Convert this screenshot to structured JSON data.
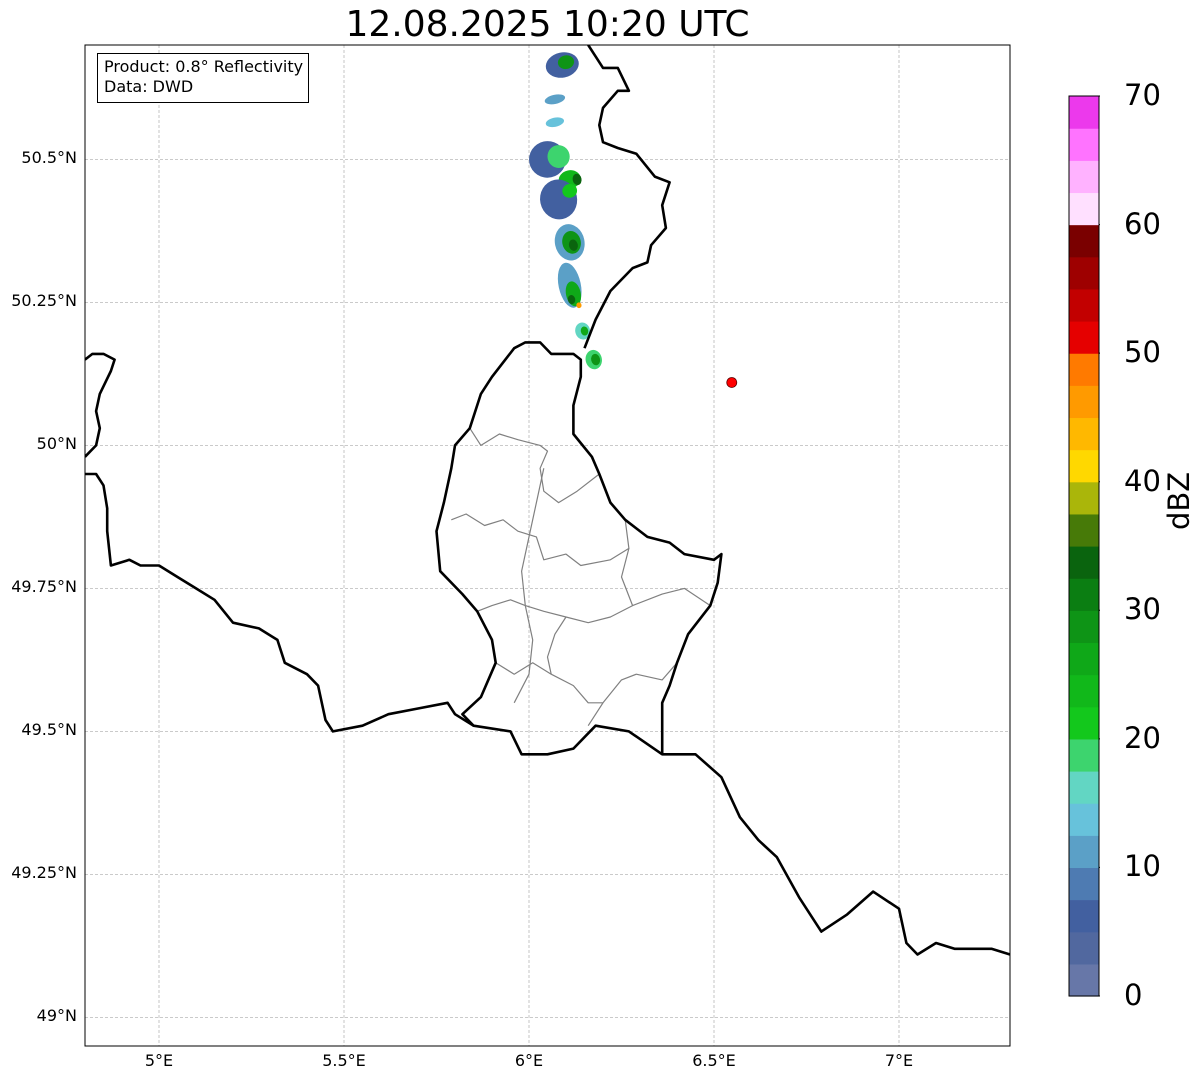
{
  "title": "12.08.2025 10:20 UTC",
  "info": {
    "product": "Product: 0.8° Reflectivity",
    "data": "Data: DWD"
  },
  "map": {
    "extent": {
      "lon_min": 4.8,
      "lon_max": 7.3,
      "lat_min": 48.95,
      "lat_max": 50.7
    },
    "lat_ticks": [
      {
        "value": 50.5,
        "label": "50.5°N"
      },
      {
        "value": 50.25,
        "label": "50.25°N"
      },
      {
        "value": 50.0,
        "label": "50°N"
      },
      {
        "value": 49.75,
        "label": "49.75°N"
      },
      {
        "value": 49.5,
        "label": "49.5°N"
      },
      {
        "value": 49.25,
        "label": "49.25°N"
      },
      {
        "value": 49.0,
        "label": "49°N"
      }
    ],
    "lon_ticks": [
      {
        "value": 5.0,
        "label": "5°E"
      },
      {
        "value": 5.5,
        "label": "5.5°E"
      },
      {
        "value": 6.0,
        "label": "6°E"
      },
      {
        "value": 6.5,
        "label": "6.5°E"
      },
      {
        "value": 7.0,
        "label": "7°E"
      }
    ],
    "grid": true,
    "radar_site": {
      "lon": 6.548,
      "lat": 50.11,
      "color": "#ff0000"
    },
    "border_color": "#000000",
    "district_color": "#808080",
    "borders": [
      [
        [
          4.8,
          50.15
        ],
        [
          4.82,
          50.16
        ],
        [
          4.85,
          50.16
        ],
        [
          4.88,
          50.15
        ],
        [
          4.87,
          50.13
        ],
        [
          4.84,
          50.09
        ],
        [
          4.83,
          50.06
        ],
        [
          4.84,
          50.03
        ],
        [
          4.83,
          50.0
        ],
        [
          4.8,
          49.98
        ]
      ],
      [
        [
          4.8,
          49.95
        ],
        [
          4.83,
          49.95
        ],
        [
          4.85,
          49.93
        ],
        [
          4.86,
          49.89
        ],
        [
          4.86,
          49.85
        ],
        [
          4.87,
          49.79
        ],
        [
          4.92,
          49.8
        ],
        [
          4.95,
          49.79
        ],
        [
          5.0,
          49.79
        ],
        [
          5.05,
          49.77
        ],
        [
          5.1,
          49.75
        ],
        [
          5.15,
          49.73
        ],
        [
          5.2,
          49.69
        ],
        [
          5.27,
          49.68
        ],
        [
          5.32,
          49.66
        ],
        [
          5.34,
          49.62
        ],
        [
          5.4,
          49.6
        ],
        [
          5.43,
          49.58
        ],
        [
          5.45,
          49.52
        ],
        [
          5.47,
          49.5
        ],
        [
          5.55,
          49.51
        ],
        [
          5.62,
          49.53
        ],
        [
          5.7,
          49.54
        ],
        [
          5.78,
          49.55
        ],
        [
          5.8,
          49.53
        ],
        [
          5.85,
          49.51
        ],
        [
          5.95,
          49.5
        ],
        [
          5.98,
          49.46
        ],
        [
          6.05,
          49.46
        ],
        [
          6.12,
          49.47
        ],
        [
          6.18,
          49.51
        ],
        [
          6.27,
          49.5
        ],
        [
          6.36,
          49.46
        ],
        [
          6.45,
          49.46
        ],
        [
          6.52,
          49.42
        ],
        [
          6.57,
          49.35
        ],
        [
          6.62,
          49.31
        ],
        [
          6.67,
          49.28
        ],
        [
          6.73,
          49.21
        ],
        [
          6.79,
          49.15
        ],
        [
          6.86,
          49.18
        ],
        [
          6.93,
          49.22
        ],
        [
          7.0,
          49.19
        ],
        [
          7.02,
          49.13
        ],
        [
          7.05,
          49.11
        ],
        [
          7.1,
          49.13
        ],
        [
          7.15,
          49.12
        ],
        [
          7.2,
          49.12
        ],
        [
          7.25,
          49.12
        ],
        [
          7.3,
          49.11
        ]
      ],
      [
        [
          6.36,
          49.46
        ],
        [
          6.36,
          49.55
        ],
        [
          6.38,
          49.58
        ],
        [
          6.4,
          49.62
        ],
        [
          6.43,
          49.67
        ],
        [
          6.49,
          49.72
        ],
        [
          6.51,
          49.76
        ],
        [
          6.52,
          49.81
        ],
        [
          6.5,
          49.8
        ],
        [
          6.42,
          49.81
        ],
        [
          6.38,
          49.83
        ],
        [
          6.32,
          49.84
        ],
        [
          6.26,
          49.87
        ],
        [
          6.22,
          49.9
        ],
        [
          6.19,
          49.95
        ],
        [
          6.17,
          49.98
        ],
        [
          6.12,
          50.02
        ],
        [
          6.12,
          50.07
        ],
        [
          6.14,
          50.12
        ],
        [
          6.14,
          50.15
        ],
        [
          6.12,
          50.16
        ],
        [
          6.06,
          50.16
        ],
        [
          6.03,
          50.18
        ],
        [
          5.99,
          50.18
        ],
        [
          5.96,
          50.17
        ],
        [
          5.9,
          50.12
        ],
        [
          5.87,
          50.09
        ],
        [
          5.84,
          50.03
        ],
        [
          5.8,
          50.0
        ],
        [
          5.79,
          49.96
        ],
        [
          5.77,
          49.9
        ],
        [
          5.75,
          49.85
        ],
        [
          5.76,
          49.78
        ],
        [
          5.82,
          49.74
        ],
        [
          5.86,
          49.71
        ],
        [
          5.9,
          49.66
        ],
        [
          5.91,
          49.62
        ],
        [
          5.87,
          49.56
        ],
        [
          5.82,
          49.53
        ],
        [
          5.85,
          49.51
        ]
      ],
      [
        [
          6.15,
          50.17
        ],
        [
          6.18,
          50.22
        ],
        [
          6.22,
          50.27
        ],
        [
          6.28,
          50.31
        ],
        [
          6.32,
          50.32
        ],
        [
          6.33,
          50.35
        ],
        [
          6.37,
          50.38
        ],
        [
          6.36,
          50.42
        ],
        [
          6.38,
          50.46
        ],
        [
          6.34,
          50.47
        ],
        [
          6.29,
          50.51
        ],
        [
          6.24,
          50.52
        ],
        [
          6.2,
          50.53
        ],
        [
          6.19,
          50.56
        ],
        [
          6.2,
          50.59
        ],
        [
          6.24,
          50.62
        ],
        [
          6.27,
          50.62
        ],
        [
          6.24,
          50.66
        ],
        [
          6.2,
          50.66
        ],
        [
          6.18,
          50.68
        ],
        [
          6.16,
          50.7
        ]
      ]
    ],
    "districts": [
      [
        [
          5.84,
          50.03
        ],
        [
          5.87,
          50.0
        ],
        [
          5.92,
          50.02
        ],
        [
          5.97,
          50.01
        ],
        [
          6.03,
          50.0
        ],
        [
          6.05,
          49.99
        ],
        [
          6.03,
          49.96
        ],
        [
          6.04,
          49.92
        ],
        [
          6.08,
          49.9
        ],
        [
          6.13,
          49.92
        ],
        [
          6.19,
          49.95
        ]
      ],
      [
        [
          5.79,
          49.87
        ],
        [
          5.83,
          49.88
        ],
        [
          5.88,
          49.86
        ],
        [
          5.93,
          49.87
        ],
        [
          5.97,
          49.85
        ],
        [
          6.02,
          49.84
        ],
        [
          6.04,
          49.8
        ],
        [
          6.1,
          49.81
        ],
        [
          6.14,
          49.79
        ],
        [
          6.22,
          49.8
        ],
        [
          6.27,
          49.82
        ],
        [
          6.26,
          49.87
        ]
      ],
      [
        [
          6.04,
          49.96
        ],
        [
          6.02,
          49.9
        ],
        [
          6.0,
          49.84
        ],
        [
          5.98,
          49.78
        ],
        [
          5.99,
          49.72
        ],
        [
          6.01,
          49.66
        ],
        [
          6.0,
          49.6
        ],
        [
          5.96,
          49.55
        ]
      ],
      [
        [
          5.86,
          49.71
        ],
        [
          5.9,
          49.72
        ],
        [
          5.95,
          49.73
        ],
        [
          5.99,
          49.72
        ],
        [
          6.04,
          49.71
        ],
        [
          6.1,
          49.7
        ],
        [
          6.16,
          49.69
        ],
        [
          6.22,
          49.7
        ],
        [
          6.28,
          49.72
        ],
        [
          6.36,
          49.74
        ],
        [
          6.42,
          49.75
        ],
        [
          6.49,
          49.72
        ]
      ],
      [
        [
          5.91,
          49.62
        ],
        [
          5.96,
          49.6
        ],
        [
          6.01,
          49.62
        ],
        [
          6.06,
          49.6
        ],
        [
          6.12,
          49.58
        ],
        [
          6.16,
          49.55
        ],
        [
          6.2,
          49.55
        ],
        [
          6.25,
          49.59
        ],
        [
          6.29,
          49.6
        ],
        [
          6.36,
          49.59
        ],
        [
          6.4,
          49.62
        ]
      ],
      [
        [
          6.1,
          49.7
        ],
        [
          6.07,
          49.67
        ],
        [
          6.05,
          49.63
        ],
        [
          6.06,
          49.6
        ]
      ],
      [
        [
          6.28,
          49.72
        ],
        [
          6.25,
          49.77
        ],
        [
          6.27,
          49.82
        ]
      ],
      [
        [
          6.2,
          49.55
        ],
        [
          6.16,
          49.51
        ]
      ]
    ],
    "precip_cells": [
      {
        "lon": 6.09,
        "lat": 50.665,
        "rx": 0.045,
        "ry": 0.022,
        "dbz": 6
      },
      {
        "lon": 6.1,
        "lat": 50.67,
        "rx": 0.022,
        "ry": 0.012,
        "dbz": 28
      },
      {
        "lon": 6.07,
        "lat": 50.605,
        "rx": 0.028,
        "ry": 0.008,
        "dbz": 12
      },
      {
        "lon": 6.07,
        "lat": 50.565,
        "rx": 0.025,
        "ry": 0.008,
        "dbz": 14
      },
      {
        "lon": 6.05,
        "lat": 50.5,
        "rx": 0.05,
        "ry": 0.032,
        "dbz": 6
      },
      {
        "lon": 6.08,
        "lat": 50.505,
        "rx": 0.03,
        "ry": 0.02,
        "dbz": 18
      },
      {
        "lon": 6.11,
        "lat": 50.465,
        "rx": 0.03,
        "ry": 0.016,
        "dbz": 24
      },
      {
        "lon": 6.13,
        "lat": 50.465,
        "rx": 0.012,
        "ry": 0.01,
        "dbz": 33
      },
      {
        "lon": 6.08,
        "lat": 50.43,
        "rx": 0.05,
        "ry": 0.035,
        "dbz": 6
      },
      {
        "lon": 6.11,
        "lat": 50.445,
        "rx": 0.02,
        "ry": 0.012,
        "dbz": 20
      },
      {
        "lon": 6.11,
        "lat": 50.355,
        "rx": 0.04,
        "ry": 0.032,
        "dbz": 10
      },
      {
        "lon": 6.115,
        "lat": 50.355,
        "rx": 0.025,
        "ry": 0.02,
        "dbz": 28
      },
      {
        "lon": 6.12,
        "lat": 50.35,
        "rx": 0.012,
        "ry": 0.01,
        "dbz": 34
      },
      {
        "lon": 6.11,
        "lat": 50.28,
        "rx": 0.03,
        "ry": 0.04,
        "dbz": 10
      },
      {
        "lon": 6.12,
        "lat": 50.265,
        "rx": 0.02,
        "ry": 0.022,
        "dbz": 26
      },
      {
        "lon": 6.115,
        "lat": 50.255,
        "rx": 0.01,
        "ry": 0.008,
        "dbz": 34
      },
      {
        "lon": 6.135,
        "lat": 50.245,
        "rx": 0.007,
        "ry": 0.005,
        "dbz": 45
      },
      {
        "lon": 6.145,
        "lat": 50.2,
        "rx": 0.02,
        "ry": 0.015,
        "dbz": 16
      },
      {
        "lon": 6.15,
        "lat": 50.2,
        "rx": 0.01,
        "ry": 0.008,
        "dbz": 26
      },
      {
        "lon": 6.175,
        "lat": 50.15,
        "rx": 0.022,
        "ry": 0.017,
        "dbz": 18
      },
      {
        "lon": 6.18,
        "lat": 50.15,
        "rx": 0.012,
        "ry": 0.01,
        "dbz": 28
      }
    ]
  },
  "colorbar": {
    "unit": "dBZ",
    "min": 0,
    "max": 70,
    "step": 2.5,
    "colors": [
      "#6777a8",
      "#51689f",
      "#4260a0",
      "#4e7bb2",
      "#5ba0c7",
      "#67c2db",
      "#62d6c3",
      "#3dd46e",
      "#13c81c",
      "#11b81a",
      "#0fa818",
      "#0e9416",
      "#0b7e12",
      "#0a640e",
      "#477a08",
      "#aab60a",
      "#ffd800",
      "#ffb800",
      "#ff9a00",
      "#ff7a00",
      "#e50000",
      "#c20000",
      "#9e0000",
      "#7a0000",
      "#ffe0ff",
      "#ffb2ff",
      "#ff73ff",
      "#ec39ec"
    ],
    "tick_labels": [
      "0",
      "10",
      "20",
      "30",
      "40",
      "50",
      "60",
      "70"
    ]
  }
}
